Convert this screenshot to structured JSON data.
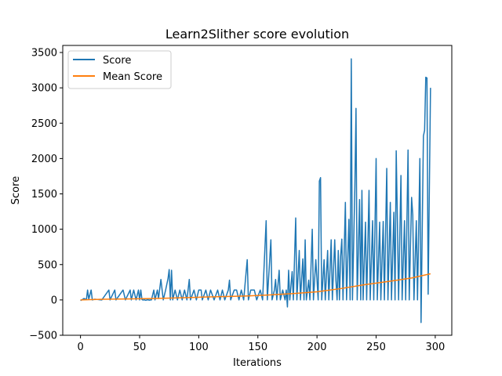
{
  "chart_data": {
    "type": "line",
    "title": "Learn2Slither score evolution",
    "xlabel": "Iterations",
    "ylabel": "Score",
    "xlim": [
      -15,
      314
    ],
    "ylim": [
      -500,
      3600
    ],
    "xticks": [
      0,
      50,
      100,
      150,
      200,
      250,
      300
    ],
    "yticks": [
      -500,
      0,
      500,
      1000,
      1500,
      2000,
      2500,
      3000,
      3500
    ],
    "grid": false,
    "legend": "top-left",
    "series": [
      {
        "name": "Score",
        "color": "#1f77b4",
        "keypoints": [
          [
            0,
            -10
          ],
          [
            3,
            20
          ],
          [
            5,
            5
          ],
          [
            6,
            140
          ],
          [
            7,
            10
          ],
          [
            9,
            140
          ],
          [
            10,
            0
          ],
          [
            12,
            10
          ],
          [
            18,
            0
          ],
          [
            24,
            140
          ],
          [
            25,
            0
          ],
          [
            29,
            140
          ],
          [
            30,
            0
          ],
          [
            36,
            140
          ],
          [
            38,
            0
          ],
          [
            42,
            140
          ],
          [
            43,
            0
          ],
          [
            45,
            140
          ],
          [
            47,
            0
          ],
          [
            49,
            140
          ],
          [
            50,
            0
          ],
          [
            51,
            140
          ],
          [
            52,
            0
          ],
          [
            60,
            0
          ],
          [
            62,
            140
          ],
          [
            63,
            0
          ],
          [
            65,
            140
          ],
          [
            66,
            20
          ],
          [
            68,
            290
          ],
          [
            70,
            0
          ],
          [
            72,
            140
          ],
          [
            74,
            300
          ],
          [
            75,
            430
          ],
          [
            76,
            0
          ],
          [
            77,
            420
          ],
          [
            78,
            0
          ],
          [
            80,
            140
          ],
          [
            82,
            0
          ],
          [
            84,
            140
          ],
          [
            86,
            0
          ],
          [
            88,
            140
          ],
          [
            90,
            0
          ],
          [
            92,
            290
          ],
          [
            93,
            0
          ],
          [
            96,
            140
          ],
          [
            98,
            0
          ],
          [
            100,
            140
          ],
          [
            102,
            140
          ],
          [
            103,
            0
          ],
          [
            106,
            140
          ],
          [
            108,
            0
          ],
          [
            110,
            140
          ],
          [
            113,
            0
          ],
          [
            116,
            140
          ],
          [
            118,
            0
          ],
          [
            120,
            140
          ],
          [
            122,
            0
          ],
          [
            125,
            140
          ],
          [
            126,
            280
          ],
          [
            127,
            0
          ],
          [
            130,
            140
          ],
          [
            132,
            140
          ],
          [
            134,
            0
          ],
          [
            136,
            140
          ],
          [
            138,
            0
          ],
          [
            141,
            570
          ],
          [
            142,
            0
          ],
          [
            144,
            140
          ],
          [
            147,
            140
          ],
          [
            149,
            0
          ],
          [
            152,
            140
          ],
          [
            154,
            0
          ],
          [
            157,
            1120
          ],
          [
            158,
            0
          ],
          [
            161,
            850
          ],
          [
            162,
            0
          ],
          [
            164,
            140
          ],
          [
            165,
            290
          ],
          [
            166,
            0
          ],
          [
            168,
            420
          ],
          [
            169,
            0
          ],
          [
            171,
            140
          ],
          [
            173,
            0
          ],
          [
            174,
            140
          ],
          [
            175,
            -100
          ],
          [
            176,
            420
          ],
          [
            177,
            0
          ],
          [
            179,
            400
          ],
          [
            180,
            0
          ],
          [
            182,
            1160
          ],
          [
            183,
            0
          ],
          [
            185,
            700
          ],
          [
            186,
            0
          ],
          [
            188,
            580
          ],
          [
            189,
            0
          ],
          [
            190,
            850
          ],
          [
            191,
            0
          ],
          [
            193,
            280
          ],
          [
            194,
            0
          ],
          [
            196,
            1000
          ],
          [
            197,
            0
          ],
          [
            199,
            570
          ],
          [
            201,
            0
          ],
          [
            202,
            1680
          ],
          [
            203,
            1730
          ],
          [
            204,
            0
          ],
          [
            206,
            570
          ],
          [
            207,
            0
          ],
          [
            209,
            700
          ],
          [
            210,
            0
          ],
          [
            212,
            850
          ],
          [
            213,
            0
          ],
          [
            215,
            850
          ],
          [
            216,
            280
          ],
          [
            217,
            0
          ],
          [
            218,
            700
          ],
          [
            219,
            0
          ],
          [
            220,
            620
          ],
          [
            221,
            860
          ],
          [
            222,
            0
          ],
          [
            224,
            1380
          ],
          [
            225,
            0
          ],
          [
            227,
            1140
          ],
          [
            228,
            0
          ],
          [
            229,
            3410
          ],
          [
            230,
            0
          ],
          [
            232,
            1580
          ],
          [
            233,
            2710
          ],
          [
            234,
            0
          ],
          [
            236,
            1420
          ],
          [
            237,
            0
          ],
          [
            238,
            1550
          ],
          [
            239,
            0
          ],
          [
            241,
            1100
          ],
          [
            242,
            0
          ],
          [
            244,
            1550
          ],
          [
            245,
            0
          ],
          [
            247,
            1120
          ],
          [
            248,
            0
          ],
          [
            250,
            2000
          ],
          [
            251,
            0
          ],
          [
            253,
            1100
          ],
          [
            254,
            0
          ],
          [
            256,
            1110
          ],
          [
            257,
            0
          ],
          [
            259,
            1860
          ],
          [
            260,
            0
          ],
          [
            262,
            1380
          ],
          [
            263,
            0
          ],
          [
            265,
            1240
          ],
          [
            266,
            0
          ],
          [
            267,
            2110
          ],
          [
            268,
            1100
          ],
          [
            269,
            0
          ],
          [
            271,
            1760
          ],
          [
            272,
            0
          ],
          [
            274,
            1120
          ],
          [
            275,
            0
          ],
          [
            277,
            2120
          ],
          [
            278,
            0
          ],
          [
            280,
            1450
          ],
          [
            281,
            1200
          ],
          [
            282,
            0
          ],
          [
            284,
            1120
          ],
          [
            285,
            0
          ],
          [
            287,
            2000
          ],
          [
            288,
            -320
          ],
          [
            290,
            2320
          ],
          [
            291,
            2400
          ],
          [
            292,
            3150
          ],
          [
            293,
            3140
          ],
          [
            294,
            80
          ],
          [
            296,
            3000
          ]
        ]
      },
      {
        "name": "Mean Score",
        "color": "#ff7f0e",
        "points": [
          [
            0,
            0
          ],
          [
            20,
            10
          ],
          [
            40,
            14
          ],
          [
            60,
            20
          ],
          [
            80,
            28
          ],
          [
            100,
            38
          ],
          [
            120,
            47
          ],
          [
            140,
            55
          ],
          [
            160,
            70
          ],
          [
            180,
            90
          ],
          [
            200,
            115
          ],
          [
            220,
            160
          ],
          [
            240,
            215
          ],
          [
            260,
            260
          ],
          [
            280,
            310
          ],
          [
            296,
            370
          ]
        ]
      }
    ]
  }
}
